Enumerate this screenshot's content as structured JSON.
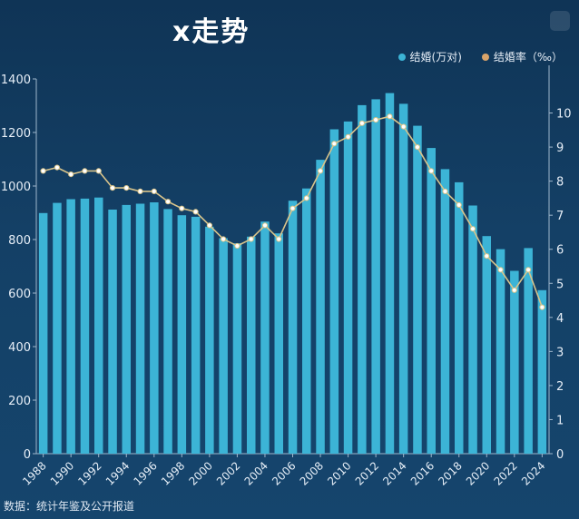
{
  "title": "x走势",
  "source": "数据：统计年鉴及公开报道",
  "legend": {
    "bars": "结婚(万对)",
    "line": "结婚率（‰）"
  },
  "colors": {
    "bar": "#3cb4d6",
    "line": "#d9c48a",
    "axis_text": "#e6eef7",
    "grid": "#2a5a83"
  },
  "chart_data": {
    "type": "bar",
    "categories": [
      "1988",
      "1989",
      "1990",
      "1991",
      "1992",
      "1993",
      "1994",
      "1995",
      "1996",
      "1997",
      "1998",
      "1999",
      "2000",
      "2001",
      "2002",
      "2003",
      "2004",
      "2005",
      "2006",
      "2007",
      "2008",
      "2009",
      "2010",
      "2011",
      "2012",
      "2013",
      "2014",
      "2015",
      "2016",
      "2017",
      "2018",
      "2019",
      "2020",
      "2021",
      "2022",
      "2023",
      "2024"
    ],
    "x_tick_labels": [
      "1988",
      "1990",
      "1992",
      "1994",
      "1996",
      "1998",
      "2000",
      "2002",
      "2004",
      "2006",
      "2008",
      "2010",
      "2012",
      "2014",
      "2016",
      "2018",
      "2020",
      "2022",
      "2024"
    ],
    "series": [
      {
        "name": "结婚(万对)",
        "axis": "left",
        "type": "bar",
        "values": [
          899,
          937,
          951,
          953,
          957,
          912,
          929,
          934,
          939,
          914,
          891,
          885,
          848,
          805,
          786,
          811,
          867,
          823,
          945,
          991,
          1098,
          1212,
          1241,
          1302,
          1324,
          1347,
          1307,
          1225,
          1142,
          1063,
          1014,
          927,
          813,
          764,
          683,
          768,
          611
        ]
      },
      {
        "name": "结婚率（‰）",
        "axis": "right",
        "type": "line",
        "values": [
          8.3,
          8.4,
          8.2,
          8.3,
          8.3,
          7.8,
          7.8,
          7.7,
          7.7,
          7.4,
          7.2,
          7.1,
          6.7,
          6.3,
          6.1,
          6.3,
          6.7,
          6.3,
          7.2,
          7.5,
          8.3,
          9.1,
          9.3,
          9.7,
          9.8,
          9.9,
          9.6,
          9.0,
          8.3,
          7.7,
          7.3,
          6.6,
          5.8,
          5.4,
          4.8,
          5.4,
          4.3
        ]
      }
    ],
    "ylim": [
      0,
      1400
    ],
    "yticks": [
      0,
      200,
      400,
      600,
      800,
      1000,
      1200,
      1400
    ],
    "y2lim": [
      0,
      11
    ],
    "y2ticks": [
      0,
      1,
      2,
      3,
      4,
      5,
      6,
      7,
      8,
      9,
      10
    ],
    "legend_position": "top-right",
    "grid": false
  }
}
